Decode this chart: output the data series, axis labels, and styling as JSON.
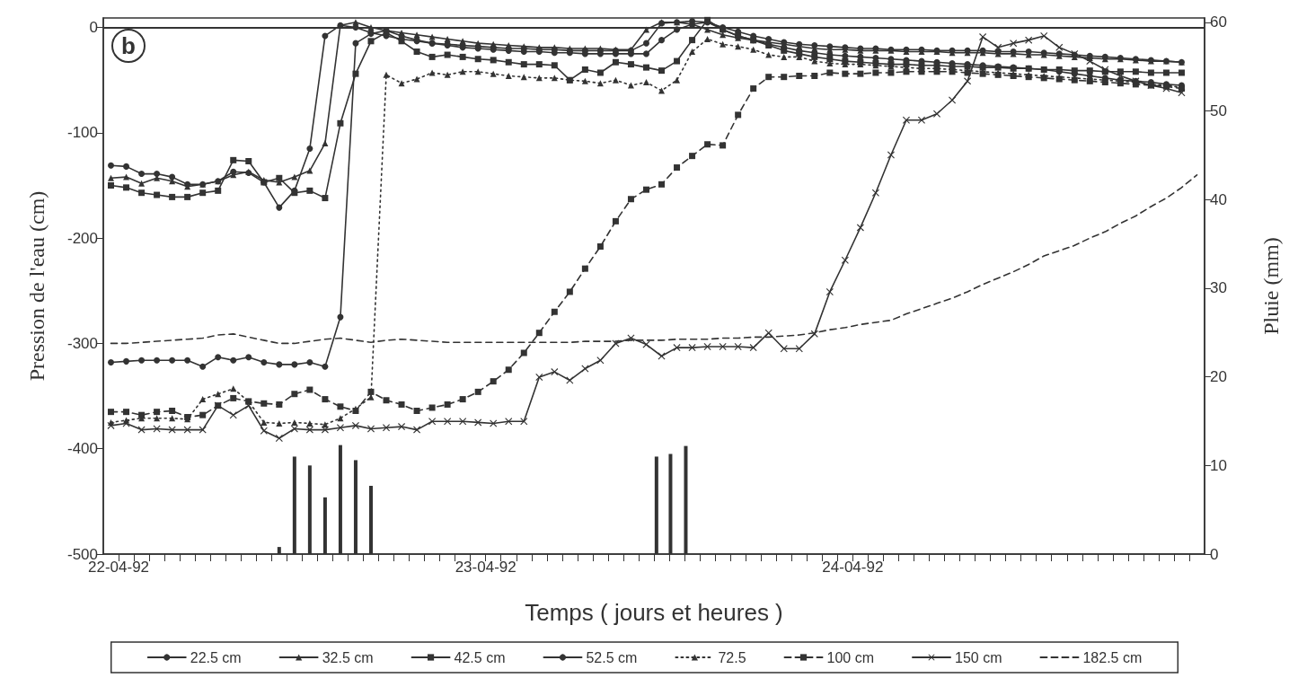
{
  "chart_data": {
    "type": "line",
    "xlabel": "Temps ( jours et heures )",
    "ylabel": "Pression de l'eau (cm)",
    "y2label": "Pluie (mm)",
    "annotations": [
      "b"
    ],
    "x": [
      "1992-04-21T23:30",
      "1992-04-22T00:30",
      "1992-04-22T01:30",
      "1992-04-22T02:30",
      "1992-04-22T03:30",
      "1992-04-22T04:30",
      "1992-04-22T05:30",
      "1992-04-22T06:30",
      "1992-04-22T07:30",
      "1992-04-22T08:30",
      "1992-04-22T09:30",
      "1992-04-22T10:30",
      "1992-04-22T11:30",
      "1992-04-22T12:30",
      "1992-04-22T13:30",
      "1992-04-22T14:30",
      "1992-04-22T15:30",
      "1992-04-22T16:30",
      "1992-04-22T17:30",
      "1992-04-22T18:30",
      "1992-04-22T19:30",
      "1992-04-22T20:30",
      "1992-04-22T21:30",
      "1992-04-22T22:30",
      "1992-04-22T23:30",
      "1992-04-23T00:30",
      "1992-04-23T01:30",
      "1992-04-23T02:30",
      "1992-04-23T03:30",
      "1992-04-23T04:30",
      "1992-04-23T05:30",
      "1992-04-23T06:30",
      "1992-04-23T07:30",
      "1992-04-23T08:30",
      "1992-04-23T09:30",
      "1992-04-23T10:30",
      "1992-04-23T11:30",
      "1992-04-23T12:30",
      "1992-04-23T13:30",
      "1992-04-23T14:30",
      "1992-04-23T15:30",
      "1992-04-23T16:30",
      "1992-04-23T17:30",
      "1992-04-23T18:30",
      "1992-04-23T19:30",
      "1992-04-23T20:30",
      "1992-04-23T21:30",
      "1992-04-23T22:30",
      "1992-04-23T23:30",
      "1992-04-24T00:30",
      "1992-04-24T01:30",
      "1992-04-24T02:30",
      "1992-04-24T03:30",
      "1992-04-24T04:30",
      "1992-04-24T05:30",
      "1992-04-24T06:30",
      "1992-04-24T07:30",
      "1992-04-24T08:30",
      "1992-04-24T09:30",
      "1992-04-24T10:30",
      "1992-04-24T11:30",
      "1992-04-24T12:30",
      "1992-04-24T13:30",
      "1992-04-24T14:30",
      "1992-04-24T15:30",
      "1992-04-24T16:30",
      "1992-04-24T17:30",
      "1992-04-24T18:30",
      "1992-04-24T19:30",
      "1992-04-24T20:30",
      "1992-04-24T21:30",
      "1992-04-24T22:30"
    ],
    "series": [
      {
        "name": "22.5 cm",
        "color": "#333333",
        "marker": "circle",
        "line_style": "solid",
        "values": [
          -131,
          -132,
          -139,
          -139,
          -142,
          -149,
          -149,
          -146,
          -137,
          -138,
          -147,
          -171,
          -155,
          -115,
          -8,
          2,
          0,
          -5,
          -8,
          -11,
          -13,
          -15,
          -16,
          -17,
          -18,
          -19,
          -20,
          -20,
          -21,
          -21,
          -22,
          -22,
          -22,
          -22,
          -22,
          -15,
          4,
          5,
          6,
          5,
          0,
          -4,
          -8,
          -11,
          -14,
          -16,
          -17,
          -18,
          -19,
          -20,
          -20,
          -21,
          -21,
          -21,
          -22,
          -22,
          -22,
          -22,
          -23,
          -23,
          -23,
          -24,
          -25,
          -26,
          -27,
          -28,
          -29,
          -30,
          -31,
          -32,
          -33,
          null
        ]
      },
      {
        "name": "32.5 cm",
        "color": "#333333",
        "marker": "triangle",
        "line_style": "solid",
        "values": [
          -143,
          -142,
          -148,
          -143,
          -146,
          -151,
          -149,
          -146,
          -140,
          -137,
          -145,
          -147,
          -142,
          -136,
          -110,
          2,
          5,
          0,
          -3,
          -5,
          -7,
          -9,
          -11,
          -13,
          -15,
          -16,
          -17,
          -18,
          -19,
          -19,
          -20,
          -20,
          -20,
          -21,
          -21,
          -2,
          5,
          5,
          3,
          -2,
          -7,
          -10,
          -12,
          -14,
          -16,
          -18,
          -20,
          -21,
          -21,
          -22,
          -22,
          -22,
          -23,
          -23,
          -23,
          -24,
          -24,
          -24,
          -25,
          -25,
          -26,
          -26,
          -27,
          -28,
          -29,
          -30,
          -30,
          -31,
          -32,
          -32,
          -33,
          null
        ]
      },
      {
        "name": "42.5 cm",
        "color": "#333333",
        "marker": "square",
        "line_style": "solid",
        "values": [
          -150,
          -152,
          -157,
          -159,
          -161,
          -161,
          -157,
          -155,
          -126,
          -127,
          -147,
          -143,
          -157,
          -155,
          -162,
          -91,
          -44,
          -13,
          -5,
          -13,
          -23,
          -28,
          -26,
          -28,
          -30,
          -31,
          -33,
          -35,
          -35,
          -36,
          -50,
          -40,
          -43,
          -33,
          -35,
          -38,
          -41,
          -32,
          -12,
          7,
          -2,
          -8,
          -12,
          -17,
          -22,
          -25,
          -28,
          -30,
          -32,
          -33,
          -34,
          -35,
          -35,
          -36,
          -36,
          -37,
          -37,
          -38,
          -38,
          -39,
          -39,
          -40,
          -40,
          -41,
          -41,
          -42,
          -42,
          -42,
          -43,
          -43,
          -43,
          null
        ]
      },
      {
        "name": "52.5 cm",
        "color": "#333333",
        "marker": "circle",
        "line_style": "solid",
        "values": [
          -318,
          -317,
          -316,
          -316,
          -316,
          -316,
          -322,
          -313,
          -316,
          -313,
          -318,
          -320,
          -320,
          -318,
          -322,
          -275,
          -15,
          -6,
          -3,
          -8,
          -12,
          -15,
          -17,
          -19,
          -20,
          -21,
          -22,
          -23,
          -23,
          -24,
          -24,
          -25,
          -25,
          -25,
          -25,
          -25,
          -12,
          -2,
          3,
          5,
          -2,
          -8,
          -12,
          -16,
          -19,
          -22,
          -24,
          -26,
          -27,
          -28,
          -29,
          -30,
          -31,
          -32,
          -33,
          -34,
          -35,
          -36,
          -37,
          -38,
          -39,
          -40,
          -42,
          -44,
          -46,
          -48,
          -50,
          -51,
          -52,
          -54,
          -55,
          null
        ]
      },
      {
        "name": "72.5",
        "color": "#333333",
        "marker": "triangle",
        "line_style": "dotted",
        "values": [
          -375,
          -373,
          -371,
          -371,
          -371,
          -372,
          -353,
          -348,
          -343,
          -355,
          -375,
          -376,
          -375,
          -376,
          -377,
          -371,
          -362,
          -351,
          -45,
          -53,
          -49,
          -43,
          -45,
          -42,
          -42,
          -44,
          -46,
          -47,
          -48,
          -48,
          -50,
          -51,
          -53,
          -50,
          -55,
          -52,
          -60,
          -50,
          -23,
          -11,
          -16,
          -18,
          -21,
          -26,
          -28,
          -28,
          -32,
          -34,
          -35,
          -35,
          -36,
          -37,
          -38,
          -39,
          -39,
          -40,
          -41,
          -42,
          -43,
          -44,
          -45,
          -46,
          -47,
          -48,
          -49,
          -50,
          -51,
          -52,
          -54,
          -55,
          -57,
          null
        ]
      },
      {
        "name": "100 cm",
        "color": "#333333",
        "marker": "square",
        "line_style": "dashed",
        "values": [
          -365,
          -365,
          -368,
          -365,
          -364,
          -370,
          -368,
          -359,
          -352,
          -355,
          -357,
          -358,
          -348,
          -344,
          -353,
          -360,
          -364,
          -346,
          -354,
          -358,
          -364,
          -361,
          -358,
          -353,
          -346,
          -336,
          -325,
          -309,
          -290,
          -270,
          -251,
          -229,
          -208,
          -184,
          -163,
          -154,
          -149,
          -133,
          -122,
          -111,
          -112,
          -83,
          -58,
          -47,
          -47,
          -46,
          -46,
          -43,
          -44,
          -44,
          -43,
          -43,
          -42,
          -42,
          -42,
          -42,
          -43,
          -44,
          -45,
          -46,
          -47,
          -48,
          -49,
          -50,
          -51,
          -52,
          -53,
          -54,
          -55,
          -56,
          -58,
          null
        ]
      },
      {
        "name": "150 cm",
        "color": "#333333",
        "marker": "cross",
        "line_style": "solid",
        "values": [
          -378,
          -376,
          -382,
          -381,
          -382,
          -382,
          -382,
          -359,
          -368,
          -359,
          -383,
          -390,
          -381,
          -382,
          -382,
          -380,
          -378,
          -381,
          -380,
          -379,
          -382,
          -374,
          -374,
          -374,
          -375,
          -376,
          -374,
          -374,
          -332,
          -327,
          -335,
          -324,
          -316,
          -300,
          -295,
          -301,
          -312,
          -304,
          -304,
          -303,
          -303,
          -303,
          -304,
          -290,
          -305,
          -305,
          -291,
          -251,
          -221,
          -190,
          -157,
          -121,
          -88,
          -88,
          -82,
          -69,
          -51,
          -9,
          -19,
          -15,
          -12,
          -8,
          -19,
          -25,
          -32,
          -40,
          -46,
          -51,
          -55,
          -58,
          -62,
          null
        ]
      },
      {
        "name": "182.5 cm",
        "color": "#333333",
        "marker": "none",
        "line_style": "dashed",
        "values": [
          -300,
          -300,
          -299,
          -298,
          -297,
          -296,
          -295,
          -292,
          -291,
          -294,
          -297,
          -300,
          -300,
          -298,
          -296,
          -295,
          -297,
          -299,
          -297,
          -296,
          -297,
          -298,
          -299,
          -299,
          -299,
          -299,
          -299,
          -299,
          -299,
          -299,
          -299,
          -298,
          -298,
          -298,
          -297,
          -297,
          -297,
          -296,
          -296,
          -296,
          -295,
          -295,
          -294,
          -294,
          -293,
          -292,
          -290,
          -287,
          -285,
          -282,
          -280,
          -278,
          -272,
          -267,
          -262,
          -257,
          -251,
          -244,
          -238,
          -232,
          -225,
          -217,
          -212,
          -207,
          -200,
          -194,
          -186,
          -179,
          -170,
          -162,
          -152,
          -140
        ]
      },
      {
        "type": "bar",
        "axis": "y2",
        "color": "#333333",
        "x": [
          "1992-04-22T10:30",
          "1992-04-22T11:30",
          "1992-04-22T12:30",
          "1992-04-22T13:30",
          "1992-04-22T14:30",
          "1992-04-22T15:30",
          "1992-04-22T16:30",
          "1992-04-23T11:10",
          "1992-04-23T12:05",
          "1992-04-23T13:05"
        ],
        "values": [
          0.8,
          11,
          10,
          6.4,
          12.3,
          10.6,
          7.7,
          11,
          11.3,
          12.2
        ]
      }
    ],
    "xlim": [
      "1992-04-21T23:00",
      "1992-04-24T23:00"
    ],
    "xticks": [
      {
        "value": "1992-04-22T00:00",
        "label": "22-04-92"
      },
      {
        "value": "1992-04-22T01:00",
        "label": null
      },
      {
        "value": "1992-04-22T02:00",
        "label": null
      },
      {
        "value": "1992-04-22T03:00",
        "label": null
      },
      {
        "value": "1992-04-22T04:00",
        "label": null
      },
      {
        "value": "1992-04-22T05:00",
        "label": null
      },
      {
        "value": "1992-04-22T06:00",
        "label": null
      },
      {
        "value": "1992-04-22T07:00",
        "label": null
      },
      {
        "value": "1992-04-22T08:00",
        "label": null
      },
      {
        "value": "1992-04-22T09:00",
        "label": null
      },
      {
        "value": "1992-04-22T10:00",
        "label": null
      },
      {
        "value": "1992-04-22T11:00",
        "label": null
      },
      {
        "value": "1992-04-22T12:00",
        "label": null
      },
      {
        "value": "1992-04-22T13:00",
        "label": null
      },
      {
        "value": "1992-04-22T14:00",
        "label": null
      },
      {
        "value": "1992-04-22T15:00",
        "label": null
      },
      {
        "value": "1992-04-22T16:00",
        "label": null
      },
      {
        "value": "1992-04-22T17:00",
        "label": null
      },
      {
        "value": "1992-04-22T18:00",
        "label": null
      },
      {
        "value": "1992-04-22T19:00",
        "label": null
      },
      {
        "value": "1992-04-22T20:00",
        "label": null
      },
      {
        "value": "1992-04-22T21:00",
        "label": null
      },
      {
        "value": "1992-04-22T22:00",
        "label": null
      },
      {
        "value": "1992-04-22T23:00",
        "label": null
      },
      {
        "value": "1992-04-23T00:00",
        "label": "23-04-92"
      },
      {
        "value": "1992-04-23T01:00",
        "label": null
      },
      {
        "value": "1992-04-23T02:00",
        "label": null
      },
      {
        "value": "1992-04-23T03:00",
        "label": null
      },
      {
        "value": "1992-04-23T04:00",
        "label": null
      },
      {
        "value": "1992-04-23T05:00",
        "label": null
      },
      {
        "value": "1992-04-23T06:00",
        "label": null
      },
      {
        "value": "1992-04-23T07:00",
        "label": null
      },
      {
        "value": "1992-04-23T08:00",
        "label": null
      },
      {
        "value": "1992-04-23T09:00",
        "label": null
      },
      {
        "value": "1992-04-23T10:00",
        "label": null
      },
      {
        "value": "1992-04-23T11:00",
        "label": null
      },
      {
        "value": "1992-04-23T12:00",
        "label": null
      },
      {
        "value": "1992-04-23T13:00",
        "label": null
      },
      {
        "value": "1992-04-23T14:00",
        "label": null
      },
      {
        "value": "1992-04-23T15:00",
        "label": null
      },
      {
        "value": "1992-04-23T16:00",
        "label": null
      },
      {
        "value": "1992-04-23T17:00",
        "label": null
      },
      {
        "value": "1992-04-23T18:00",
        "label": null
      },
      {
        "value": "1992-04-23T19:00",
        "label": null
      },
      {
        "value": "1992-04-23T20:00",
        "label": null
      },
      {
        "value": "1992-04-23T21:00",
        "label": null
      },
      {
        "value": "1992-04-23T22:00",
        "label": null
      },
      {
        "value": "1992-04-23T23:00",
        "label": null
      },
      {
        "value": "1992-04-24T00:00",
        "label": "24-04-92"
      },
      {
        "value": "1992-04-24T01:00",
        "label": null
      },
      {
        "value": "1992-04-24T02:00",
        "label": null
      },
      {
        "value": "1992-04-24T03:00",
        "label": null
      },
      {
        "value": "1992-04-24T04:00",
        "label": null
      },
      {
        "value": "1992-04-24T05:00",
        "label": null
      },
      {
        "value": "1992-04-24T06:00",
        "label": null
      },
      {
        "value": "1992-04-24T07:00",
        "label": null
      },
      {
        "value": "1992-04-24T08:00",
        "label": null
      },
      {
        "value": "1992-04-24T09:00",
        "label": null
      },
      {
        "value": "1992-04-24T10:00",
        "label": null
      },
      {
        "value": "1992-04-24T11:00",
        "label": null
      },
      {
        "value": "1992-04-24T12:00",
        "label": null
      },
      {
        "value": "1992-04-24T13:00",
        "label": null
      },
      {
        "value": "1992-04-24T14:00",
        "label": null
      },
      {
        "value": "1992-04-24T15:00",
        "label": null
      },
      {
        "value": "1992-04-24T16:00",
        "label": null
      },
      {
        "value": "1992-04-24T17:00",
        "label": null
      },
      {
        "value": "1992-04-24T18:00",
        "label": null
      },
      {
        "value": "1992-04-24T19:00",
        "label": null
      },
      {
        "value": "1992-04-24T20:00",
        "label": null
      },
      {
        "value": "1992-04-24T21:00",
        "label": null
      },
      {
        "value": "1992-04-24T22:00",
        "label": null
      }
    ],
    "ylim": [
      -500,
      9
    ],
    "yticks": [
      -500,
      -400,
      -300,
      -200,
      -100,
      0
    ],
    "y2lim": [
      0,
      60.5
    ],
    "y2ticks": [
      0,
      10,
      20,
      30,
      40,
      50,
      60
    ],
    "ref_lines": [
      {
        "axis": "y",
        "value": 0,
        "color": "#333333"
      }
    ],
    "grid": false,
    "legend": "bottom"
  }
}
